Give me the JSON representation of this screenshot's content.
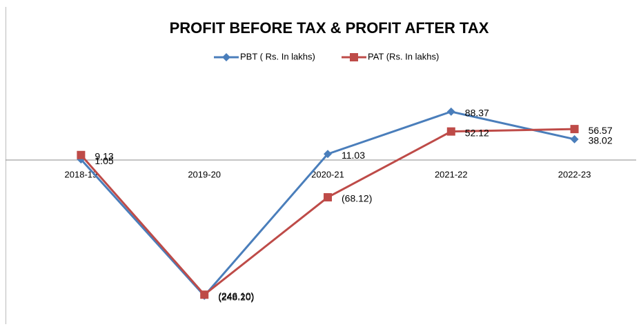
{
  "chart_data": {
    "type": "line",
    "title": "PROFIT BEFORE TAX & PROFIT AFTER TAX",
    "categories": [
      "2018-19",
      "2019-20",
      "2020-21",
      "2021-22",
      "2022-23"
    ],
    "series": [
      {
        "name": "PBT ( Rs. In lakhs)",
        "color": "#4a7ebb",
        "marker": "diamond",
        "values": [
          1.05,
          -248.2,
          11.03,
          88.37,
          38.02
        ],
        "value_labels": [
          "1.05",
          "(248.20)",
          "11.03",
          "88.37",
          "38.02"
        ]
      },
      {
        "name": "PAT (Rs. In lakhs)",
        "color": "#be4b48",
        "marker": "square",
        "values": [
          9.13,
          -246.1,
          -68.12,
          52.12,
          56.57
        ],
        "value_labels": [
          "9.13",
          "(246.10)",
          "(68.12)",
          "52.12",
          "56.57"
        ]
      }
    ],
    "ylim": [
      -300,
      150
    ],
    "legend": "top"
  }
}
